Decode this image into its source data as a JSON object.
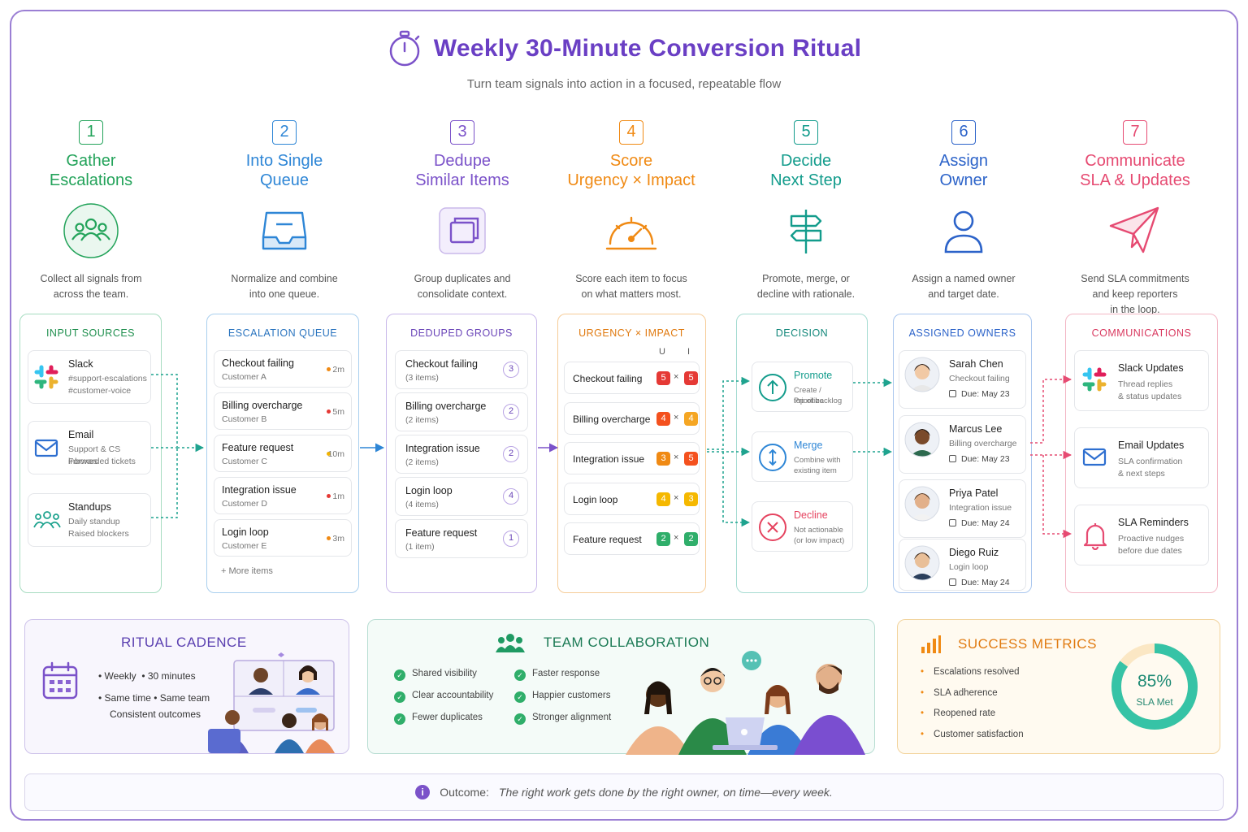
{
  "header": {
    "title": "Weekly 30-Minute Conversion Ritual",
    "subtitle": "Turn team signals into action in a focused, repeatable flow"
  },
  "steps": [
    {
      "num": "1",
      "title": "Gather\nEscalations",
      "desc": "Collect all signals from\nacross the team.",
      "color": "#23a35a",
      "icon": "team-icon"
    },
    {
      "num": "2",
      "title": "Into Single\nQueue",
      "desc": "Normalize and combine\ninto one queue.",
      "color": "#2e86d6",
      "icon": "inbox-icon"
    },
    {
      "num": "3",
      "title": "Dedupe\nSimilar Items",
      "desc": "Group duplicates and\nconsolidate context.",
      "color": "#7b52c9",
      "icon": "stack-icon"
    },
    {
      "num": "4",
      "title": "Score\nUrgency × Impact",
      "desc": "Score each item to focus\non what matters most.",
      "color": "#f08a14",
      "icon": "gauge-icon"
    },
    {
      "num": "5",
      "title": "Decide\nNext Step",
      "desc": "Promote, merge, or\ndecline with rationale.",
      "color": "#139c8c",
      "icon": "signpost-icon"
    },
    {
      "num": "6",
      "title": "Assign\nOwner",
      "desc": "Assign a named owner\nand target date.",
      "color": "#2c63c9",
      "icon": "person-icon"
    },
    {
      "num": "7",
      "title": "Communicate\nSLA & Updates",
      "desc": "Send SLA commitments\nand keep reporters\nin the loop.",
      "color": "#e64b72",
      "icon": "paper-plane-icon"
    }
  ],
  "input_sources": {
    "header": "INPUT SOURCES",
    "items": [
      {
        "name": "Slack",
        "line1": "#support-escalations",
        "line2": "#customer-voice"
      },
      {
        "name": "Email",
        "line1": "Support & CS inboxes",
        "line2": "Forwarded tickets"
      },
      {
        "name": "Standups",
        "line1": "Daily standup",
        "line2": "Raised blockers"
      }
    ]
  },
  "queue": {
    "header": "ESCALATION QUEUE",
    "items": [
      {
        "title": "Checkout failing",
        "sub": "Customer A",
        "time": "2m",
        "dot": "#f08a14"
      },
      {
        "title": "Billing overcharge",
        "sub": "Customer B",
        "time": "5m",
        "dot": "#e53935"
      },
      {
        "title": "Feature request",
        "sub": "Customer C",
        "time": "10m",
        "dot": "#f4b400"
      },
      {
        "title": "Integration issue",
        "sub": "Customer D",
        "time": "1m",
        "dot": "#e53935"
      },
      {
        "title": "Login loop",
        "sub": "Customer E",
        "time": "3m",
        "dot": "#f08a14"
      }
    ],
    "more": "+ More items"
  },
  "deduped": {
    "header": "DEDUPED GROUPS",
    "items": [
      {
        "title": "Checkout failing",
        "sub": "(3 items)",
        "count": "3"
      },
      {
        "title": "Billing overcharge",
        "sub": "(2 items)",
        "count": "2"
      },
      {
        "title": "Integration issue",
        "sub": "(2 items)",
        "count": "2"
      },
      {
        "title": "Login loop",
        "sub": "(4 items)",
        "count": "4"
      },
      {
        "title": "Feature request",
        "sub": "(1 item)",
        "count": "1"
      }
    ]
  },
  "scoring": {
    "header": "URGENCY × IMPACT",
    "u_label": "U",
    "i_label": "I",
    "times": "×",
    "items": [
      {
        "title": "Checkout failing",
        "u": "5",
        "i": "5",
        "uc": "#e53935",
        "ic": "#e53935"
      },
      {
        "title": "Billing overcharge",
        "u": "4",
        "i": "4",
        "uc": "#f4511e",
        "ic": "#f5a623"
      },
      {
        "title": "Integration issue",
        "u": "3",
        "i": "5",
        "uc": "#f08a14",
        "ic": "#f4511e"
      },
      {
        "title": "Login loop",
        "u": "4",
        "i": "3",
        "uc": "#f5b800",
        "ic": "#f5b800"
      },
      {
        "title": "Feature request",
        "u": "2",
        "i": "2",
        "uc": "#2fae6a",
        "ic": "#2fae6a"
      }
    ]
  },
  "decision": {
    "header": "DECISION",
    "items": [
      {
        "title": "Promote",
        "line1": "Create / Prioritize",
        "line2": "top of backlog",
        "color": "#139c8c",
        "icon": "arrow-up-icon"
      },
      {
        "title": "Merge",
        "line1": "Combine with",
        "line2": "existing item",
        "color": "#2e86d6",
        "icon": "arrows-vertical-icon"
      },
      {
        "title": "Decline",
        "line1": "Not actionable",
        "line2": "(or low impact)",
        "color": "#e5435f",
        "icon": "x-circle-icon"
      }
    ]
  },
  "owners": {
    "header": "ASSIGNED OWNERS",
    "items": [
      {
        "name": "Sarah Chen",
        "item": "Checkout failing",
        "due": "Due: May 23",
        "skin": "#f1c9a5",
        "hair": "#2a1a12",
        "shirt": "#e8e8e8"
      },
      {
        "name": "Marcus Lee",
        "item": "Billing overcharge",
        "due": "Due: May 23",
        "skin": "#7a4a2a",
        "hair": "#1a0f08",
        "shirt": "#2d6a4f"
      },
      {
        "name": "Priya Patel",
        "item": "Integration issue",
        "due": "Due: May 24",
        "skin": "#e2b08a",
        "hair": "#5a3a22",
        "shirt": "#f2f2f2"
      },
      {
        "name": "Diego Ruiz",
        "item": "Login loop",
        "due": "Due: May 24",
        "skin": "#e9bf98",
        "hair": "#3a2618",
        "shirt": "#2b3f5c"
      }
    ]
  },
  "communications": {
    "header": "COMMUNICATIONS",
    "items": [
      {
        "title": "Slack Updates",
        "line1": "Thread replies",
        "line2": "& status updates",
        "icon": "slack-icon"
      },
      {
        "title": "Email Updates",
        "line1": "SLA confirmation",
        "line2": "& next steps",
        "icon": "mail-icon"
      },
      {
        "title": "SLA Reminders",
        "line1": "Proactive nudges",
        "line2": "before due dates",
        "icon": "bell-icon"
      }
    ]
  },
  "cadence": {
    "title": "RITUAL CADENCE",
    "row1a": "Weekly",
    "row1b": "30 minutes",
    "row2a": "Same time",
    "row2b": "Same team",
    "row3": "Consistent outcomes"
  },
  "collaboration": {
    "title": "TEAM COLLABORATION",
    "left": [
      "Shared visibility",
      "Clear accountability",
      "Fewer duplicates"
    ],
    "right": [
      "Faster response",
      "Happier customers",
      "Stronger alignment"
    ]
  },
  "metrics": {
    "title": "SUCCESS METRICS",
    "items": [
      "Escalations resolved",
      "SLA adherence",
      "Reopened rate",
      "Customer satisfaction"
    ],
    "donut_value": "85%",
    "donut_label": "SLA Met",
    "donut_fraction": 0.85
  },
  "outcome": {
    "label": "Outcome:",
    "text": "The right work gets done by the right owner, on time—every week."
  }
}
